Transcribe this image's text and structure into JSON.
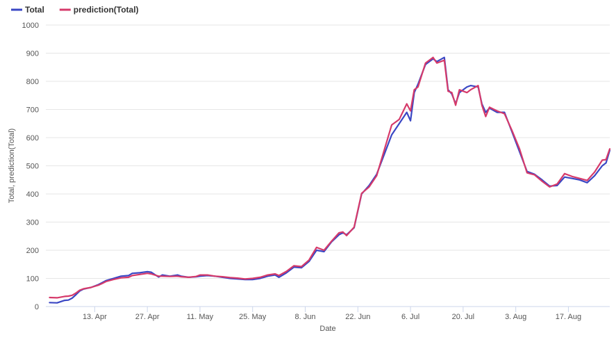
{
  "chart_data": {
    "type": "line",
    "xlabel": "Date",
    "ylabel": "Total, prediction(Total)",
    "ylim": [
      0,
      1000
    ],
    "yticks": [
      0,
      100,
      200,
      300,
      400,
      500,
      600,
      700,
      800,
      900,
      1000
    ],
    "xlim": [
      "2020-03-31",
      "2020-08-28"
    ],
    "xticks": [
      {
        "date": "2020-04-13",
        "label": "13. Apr"
      },
      {
        "date": "2020-04-27",
        "label": "27. Apr"
      },
      {
        "date": "2020-05-11",
        "label": "11. May"
      },
      {
        "date": "2020-05-25",
        "label": "25. May"
      },
      {
        "date": "2020-06-08",
        "label": "8. Jun"
      },
      {
        "date": "2020-06-22",
        "label": "22. Jun"
      },
      {
        "date": "2020-07-06",
        "label": "6. Jul"
      },
      {
        "date": "2020-07-20",
        "label": "20. Jul"
      },
      {
        "date": "2020-08-03",
        "label": "3. Aug"
      },
      {
        "date": "2020-08-17",
        "label": "17. Aug"
      }
    ],
    "grid": true,
    "legend_position": "top-left",
    "series": [
      {
        "name": "Total",
        "color": "#3a47c4",
        "points": [
          [
            "2020-04-01",
            14
          ],
          [
            "2020-04-03",
            13
          ],
          [
            "2020-04-05",
            22
          ],
          [
            "2020-04-06",
            23
          ],
          [
            "2020-04-07",
            30
          ],
          [
            "2020-04-08",
            42
          ],
          [
            "2020-04-09",
            55
          ],
          [
            "2020-04-10",
            62
          ],
          [
            "2020-04-12",
            68
          ],
          [
            "2020-04-14",
            78
          ],
          [
            "2020-04-15",
            85
          ],
          [
            "2020-04-16",
            92
          ],
          [
            "2020-04-18",
            100
          ],
          [
            "2020-04-20",
            108
          ],
          [
            "2020-04-22",
            110
          ],
          [
            "2020-04-23",
            118
          ],
          [
            "2020-04-25",
            120
          ],
          [
            "2020-04-27",
            124
          ],
          [
            "2020-04-28",
            122
          ],
          [
            "2020-04-30",
            105
          ],
          [
            "2020-05-01",
            112
          ],
          [
            "2020-05-03",
            108
          ],
          [
            "2020-05-05",
            112
          ],
          [
            "2020-05-06",
            108
          ],
          [
            "2020-05-08",
            104
          ],
          [
            "2020-05-10",
            106
          ],
          [
            "2020-05-11",
            108
          ],
          [
            "2020-05-13",
            110
          ],
          [
            "2020-05-15",
            108
          ],
          [
            "2020-05-17",
            104
          ],
          [
            "2020-05-19",
            100
          ],
          [
            "2020-05-21",
            98
          ],
          [
            "2020-05-23",
            96
          ],
          [
            "2020-05-25",
            96
          ],
          [
            "2020-05-27",
            100
          ],
          [
            "2020-05-29",
            108
          ],
          [
            "2020-05-31",
            112
          ],
          [
            "2020-06-01",
            104
          ],
          [
            "2020-06-03",
            120
          ],
          [
            "2020-06-05",
            140
          ],
          [
            "2020-06-07",
            138
          ],
          [
            "2020-06-09",
            160
          ],
          [
            "2020-06-11",
            200
          ],
          [
            "2020-06-13",
            195
          ],
          [
            "2020-06-15",
            230
          ],
          [
            "2020-06-17",
            255
          ],
          [
            "2020-06-18",
            262
          ],
          [
            "2020-06-19",
            255
          ],
          [
            "2020-06-21",
            280
          ],
          [
            "2020-06-23",
            400
          ],
          [
            "2020-06-25",
            430
          ],
          [
            "2020-06-27",
            470
          ],
          [
            "2020-06-29",
            540
          ],
          [
            "2020-07-01",
            610
          ],
          [
            "2020-07-03",
            650
          ],
          [
            "2020-07-05",
            690
          ],
          [
            "2020-07-06",
            660
          ],
          [
            "2020-07-07",
            760
          ],
          [
            "2020-07-08",
            790
          ],
          [
            "2020-07-10",
            860
          ],
          [
            "2020-07-12",
            880
          ],
          [
            "2020-07-13",
            870
          ],
          [
            "2020-07-15",
            885
          ],
          [
            "2020-07-16",
            770
          ],
          [
            "2020-07-17",
            755
          ],
          [
            "2020-07-18",
            720
          ],
          [
            "2020-07-19",
            760
          ],
          [
            "2020-07-21",
            780
          ],
          [
            "2020-07-22",
            785
          ],
          [
            "2020-07-24",
            780
          ],
          [
            "2020-07-25",
            720
          ],
          [
            "2020-07-26",
            690
          ],
          [
            "2020-07-27",
            705
          ],
          [
            "2020-07-29",
            690
          ],
          [
            "2020-07-31",
            690
          ],
          [
            "2020-08-02",
            620
          ],
          [
            "2020-08-04",
            550
          ],
          [
            "2020-08-06",
            480
          ],
          [
            "2020-08-08",
            470
          ],
          [
            "2020-08-10",
            450
          ],
          [
            "2020-08-12",
            428
          ],
          [
            "2020-08-14",
            430
          ],
          [
            "2020-08-16",
            460
          ],
          [
            "2020-08-18",
            455
          ],
          [
            "2020-08-20",
            450
          ],
          [
            "2020-08-22",
            440
          ],
          [
            "2020-08-24",
            465
          ],
          [
            "2020-08-26",
            500
          ],
          [
            "2020-08-27",
            510
          ],
          [
            "2020-08-28",
            555
          ]
        ]
      },
      {
        "name": "prediction(Total)",
        "color": "#d63a6a",
        "points": [
          [
            "2020-04-01",
            32
          ],
          [
            "2020-04-03",
            31
          ],
          [
            "2020-04-05",
            36
          ],
          [
            "2020-04-06",
            37
          ],
          [
            "2020-04-07",
            40
          ],
          [
            "2020-04-08",
            48
          ],
          [
            "2020-04-09",
            58
          ],
          [
            "2020-04-10",
            63
          ],
          [
            "2020-04-12",
            68
          ],
          [
            "2020-04-14",
            76
          ],
          [
            "2020-04-15",
            82
          ],
          [
            "2020-04-16",
            89
          ],
          [
            "2020-04-18",
            96
          ],
          [
            "2020-04-20",
            102
          ],
          [
            "2020-04-22",
            104
          ],
          [
            "2020-04-23",
            110
          ],
          [
            "2020-04-25",
            114
          ],
          [
            "2020-04-27",
            118
          ],
          [
            "2020-04-28",
            116
          ],
          [
            "2020-04-30",
            108
          ],
          [
            "2020-05-01",
            108
          ],
          [
            "2020-05-03",
            107
          ],
          [
            "2020-05-05",
            108
          ],
          [
            "2020-05-06",
            106
          ],
          [
            "2020-05-08",
            104
          ],
          [
            "2020-05-10",
            107
          ],
          [
            "2020-05-11",
            112
          ],
          [
            "2020-05-13",
            112
          ],
          [
            "2020-05-15",
            108
          ],
          [
            "2020-05-17",
            106
          ],
          [
            "2020-05-19",
            103
          ],
          [
            "2020-05-21",
            101
          ],
          [
            "2020-05-23",
            98
          ],
          [
            "2020-05-25",
            100
          ],
          [
            "2020-05-27",
            104
          ],
          [
            "2020-05-29",
            112
          ],
          [
            "2020-05-31",
            116
          ],
          [
            "2020-06-01",
            110
          ],
          [
            "2020-06-03",
            125
          ],
          [
            "2020-06-05",
            145
          ],
          [
            "2020-06-07",
            142
          ],
          [
            "2020-06-09",
            165
          ],
          [
            "2020-06-11",
            210
          ],
          [
            "2020-06-13",
            200
          ],
          [
            "2020-06-15",
            232
          ],
          [
            "2020-06-17",
            262
          ],
          [
            "2020-06-18",
            265
          ],
          [
            "2020-06-19",
            252
          ],
          [
            "2020-06-21",
            282
          ],
          [
            "2020-06-23",
            402
          ],
          [
            "2020-06-25",
            425
          ],
          [
            "2020-06-27",
            465
          ],
          [
            "2020-06-29",
            555
          ],
          [
            "2020-07-01",
            645
          ],
          [
            "2020-07-03",
            665
          ],
          [
            "2020-07-05",
            720
          ],
          [
            "2020-07-06",
            695
          ],
          [
            "2020-07-07",
            770
          ],
          [
            "2020-07-08",
            780
          ],
          [
            "2020-07-10",
            865
          ],
          [
            "2020-07-12",
            885
          ],
          [
            "2020-07-13",
            865
          ],
          [
            "2020-07-15",
            875
          ],
          [
            "2020-07-16",
            765
          ],
          [
            "2020-07-17",
            760
          ],
          [
            "2020-07-18",
            715
          ],
          [
            "2020-07-19",
            770
          ],
          [
            "2020-07-21",
            760
          ],
          [
            "2020-07-22",
            770
          ],
          [
            "2020-07-24",
            785
          ],
          [
            "2020-07-25",
            715
          ],
          [
            "2020-07-26",
            675
          ],
          [
            "2020-07-27",
            708
          ],
          [
            "2020-07-29",
            695
          ],
          [
            "2020-07-31",
            685
          ],
          [
            "2020-08-02",
            625
          ],
          [
            "2020-08-04",
            560
          ],
          [
            "2020-08-06",
            475
          ],
          [
            "2020-08-08",
            468
          ],
          [
            "2020-08-10",
            445
          ],
          [
            "2020-08-12",
            425
          ],
          [
            "2020-08-14",
            435
          ],
          [
            "2020-08-16",
            472
          ],
          [
            "2020-08-18",
            462
          ],
          [
            "2020-08-20",
            455
          ],
          [
            "2020-08-22",
            448
          ],
          [
            "2020-08-24",
            478
          ],
          [
            "2020-08-26",
            520
          ],
          [
            "2020-08-27",
            522
          ],
          [
            "2020-08-28",
            560
          ]
        ]
      }
    ]
  }
}
